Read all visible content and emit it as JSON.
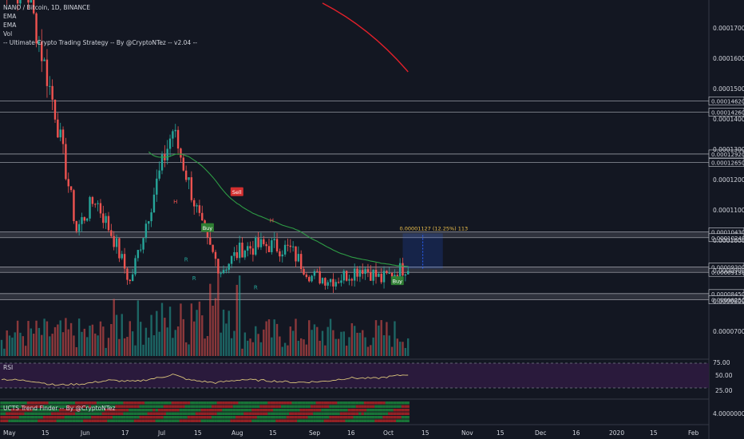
{
  "legend": {
    "symbol": "NANO / Bitcoin, 1D, BINANCE",
    "ema1": "EMA",
    "ema2": "EMA",
    "vol": "Vol",
    "strategy": "-- Ultimate Crypto Trading Strategy -- By @CryptoNTez -- v2.04 --"
  },
  "rsi_pane": {
    "title": "RSI",
    "ticks": [
      "75.00",
      "50.00",
      "25.00"
    ]
  },
  "trend_pane": {
    "title": "UCTS Trend Finder -- By @CryptoNTez",
    "tick": "4.00000000"
  },
  "x_axis": {
    "labels": [
      "May",
      "15",
      "Jun",
      "17",
      "Jul",
      "15",
      "Aug",
      "15",
      "Sep",
      "16",
      "Oct",
      "15",
      "Nov",
      "15",
      "Dec",
      "16",
      "2020",
      "15",
      "Feb"
    ]
  },
  "y_axis": {
    "ticks": [
      "0.00017000",
      "0.00016000",
      "0.00015000",
      "0.00014000",
      "0.00013000",
      "0.00012000",
      "0.00011000",
      "0.00010000",
      "0.00009000",
      "0.00008000",
      "0.00007000"
    ]
  },
  "levels": [
    {
      "label": "0.00014620",
      "value": 0.0001462
    },
    {
      "label": "0.00014260",
      "value": 0.0001426
    },
    {
      "label": "0.00012920",
      "value": 0.0001292
    },
    {
      "label": "0.00012650",
      "value": 0.0001265
    },
    {
      "label": "0.00010430",
      "value": 0.0001043
    },
    {
      "label": "0.00010240",
      "value": 0.0001024
    },
    {
      "label": "0.00009300",
      "value": 9.3e-05
    },
    {
      "label": "0.00009130",
      "value": 9.13e-05
    },
    {
      "label": "0.00008450",
      "value": 8.45e-05
    },
    {
      "label": "0.00008250",
      "value": 8.25e-05
    }
  ],
  "markers": [
    {
      "text": "H",
      "type": "pivot"
    },
    {
      "text": "H",
      "type": "pivot"
    },
    {
      "text": "Sell",
      "type": "sell"
    },
    {
      "text": "Buy",
      "type": "buy"
    },
    {
      "text": "Buy",
      "type": "buy"
    },
    {
      "text": "R",
      "type": "pivot"
    },
    {
      "text": "R",
      "type": "pivot"
    },
    {
      "text": "R",
      "type": "pivot"
    }
  ],
  "measure_label": "0.00001127 (12.25%) 113",
  "colors": {
    "background": "#131722",
    "up": "#26a69a",
    "down": "#ef5350",
    "ema_fast": "#2e9c45",
    "ema_slow": "#e3202a",
    "rsi": "#d8c27a",
    "rsi_band": "#2a1a3c",
    "level_line": "#9598a1",
    "measure": "#f0c24b",
    "axis_text": "#d1d4dc"
  },
  "chart_data": {
    "type": "candlestick",
    "title": "NANO / Bitcoin, 1D, BINANCE",
    "y_range": [
      6.35e-05,
      0.0001785
    ],
    "ohlc_anchors": [
      [
        0,
        0.000185
      ],
      [
        10,
        0.00018
      ],
      [
        20,
        0.000143
      ],
      [
        28,
        0.000105
      ],
      [
        35,
        0.000115
      ],
      [
        42,
        0.000102
      ],
      [
        48,
        8.8e-05
      ],
      [
        58,
        0.00012
      ],
      [
        64,
        0.000137
      ],
      [
        70,
        0.00012
      ],
      [
        76,
        0.000102
      ],
      [
        82,
        9.2e-05
      ],
      [
        90,
        9.9e-05
      ],
      [
        100,
        0.0001
      ],
      [
        108,
        9.85e-05
      ],
      [
        116,
        9e-05
      ],
      [
        125,
        8.9e-05
      ],
      [
        135,
        9.3e-05
      ],
      [
        142,
        8.9e-05
      ],
      [
        152,
        9.35e-05
      ]
    ],
    "ema_slow": [
      [
        100,
        0.0001775
      ],
      [
        145,
        0.0001555
      ]
    ],
    "rsi_anchors": [
      [
        0,
        50
      ],
      [
        12,
        45
      ],
      [
        20,
        35
      ],
      [
        30,
        38
      ],
      [
        40,
        47
      ],
      [
        50,
        44
      ],
      [
        60,
        55
      ],
      [
        64,
        62
      ],
      [
        70,
        48
      ],
      [
        80,
        41
      ],
      [
        90,
        49
      ],
      [
        100,
        46
      ],
      [
        110,
        42
      ],
      [
        120,
        44
      ],
      [
        130,
        53
      ],
      [
        140,
        52
      ],
      [
        152,
        62
      ]
    ],
    "rsi_range": [
      0,
      100
    ],
    "rsi_levels": [
      70,
      30
    ],
    "levels": [
      0.0001462,
      0.0001426,
      0.0001292,
      0.0001265,
      0.0001043,
      0.0001024,
      9.3e-05,
      9.13e-05,
      8.45e-05,
      8.25e-05
    ],
    "ema_length_fast": 50,
    "x_ticks": [
      "May",
      "15",
      "Jun",
      "17",
      "Jul",
      "15",
      "Aug",
      "15",
      "Sep",
      "16",
      "Oct",
      "15",
      "Nov",
      "15",
      "Dec",
      "16",
      "2020",
      "15",
      "Feb"
    ],
    "y_ticks": [
      0.00017,
      0.00016,
      0.00015,
      0.00014,
      0.00013,
      0.00012,
      0.00011,
      0.0001,
      9e-05,
      8e-05,
      7e-05
    ],
    "grid": false
  }
}
